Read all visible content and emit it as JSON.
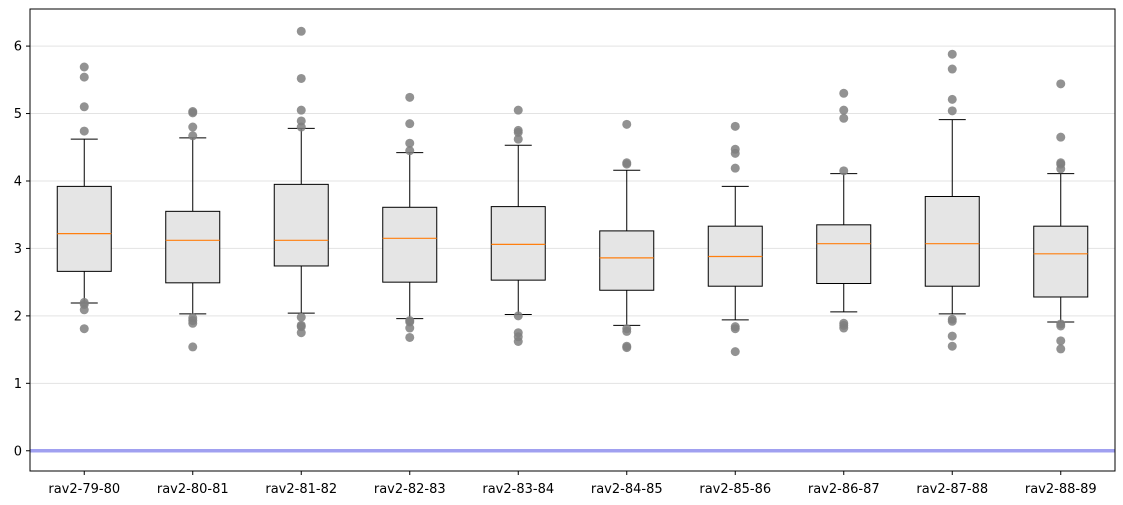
{
  "chart_data": {
    "type": "box",
    "title": "",
    "xlabel": "",
    "ylabel": "",
    "ylim": [
      -0.3,
      6.55
    ],
    "yticks": [
      0,
      1,
      2,
      3,
      4,
      5,
      6
    ],
    "grid": "horizontal",
    "reference_line": {
      "y": 0,
      "color": "#a0a0f0"
    },
    "colors": {
      "box_fill": "#e5e5e5",
      "box_edge": "#000000",
      "median": "#ff7f0e",
      "outlier": "#7f7f7f"
    },
    "categories": [
      "rav2-79-80",
      "rav2-80-81",
      "rav2-81-82",
      "rav2-82-83",
      "rav2-83-84",
      "rav2-84-85",
      "rav2-85-86",
      "rav2-86-87",
      "rav2-87-88",
      "rav2-88-89"
    ],
    "boxes": [
      {
        "whislo": 2.19,
        "q1": 2.66,
        "med": 3.22,
        "q3": 3.92,
        "whishi": 4.62,
        "fliers": [
          5.69,
          5.54,
          5.1,
          4.74,
          2.2,
          2.17,
          2.09,
          1.81
        ]
      },
      {
        "whislo": 2.03,
        "q1": 2.49,
        "med": 3.12,
        "q3": 3.55,
        "whishi": 4.64,
        "fliers": [
          5.03,
          5.01,
          4.8,
          4.67,
          1.97,
          1.93,
          1.89,
          1.54
        ]
      },
      {
        "whislo": 2.04,
        "q1": 2.74,
        "med": 3.12,
        "q3": 3.95,
        "whishi": 4.78,
        "fliers": [
          6.22,
          5.52,
          5.05,
          4.89,
          4.8,
          1.98,
          1.86,
          1.84,
          1.75
        ]
      },
      {
        "whislo": 1.96,
        "q1": 2.5,
        "med": 3.15,
        "q3": 3.61,
        "whishi": 4.42,
        "fliers": [
          5.24,
          4.85,
          4.56,
          4.45,
          1.93,
          1.91,
          1.82,
          1.68
        ]
      },
      {
        "whislo": 2.02,
        "q1": 2.53,
        "med": 3.06,
        "q3": 3.62,
        "whishi": 4.53,
        "fliers": [
          5.05,
          4.75,
          4.72,
          4.62,
          2.0,
          1.75,
          1.69,
          1.62
        ]
      },
      {
        "whislo": 1.86,
        "q1": 2.38,
        "med": 2.86,
        "q3": 3.26,
        "whishi": 4.16,
        "fliers": [
          4.84,
          4.27,
          4.25,
          1.81,
          1.77,
          1.55,
          1.53
        ]
      },
      {
        "whislo": 1.94,
        "q1": 2.44,
        "med": 2.88,
        "q3": 3.33,
        "whishi": 3.92,
        "fliers": [
          4.81,
          4.47,
          4.41,
          4.19,
          1.84,
          1.81,
          1.47
        ]
      },
      {
        "whislo": 2.06,
        "q1": 2.48,
        "med": 3.07,
        "q3": 3.35,
        "whishi": 4.11,
        "fliers": [
          5.3,
          5.05,
          4.93,
          4.15,
          1.89,
          1.86,
          1.82
        ]
      },
      {
        "whislo": 2.03,
        "q1": 2.44,
        "med": 3.07,
        "q3": 3.77,
        "whishi": 4.91,
        "fliers": [
          5.88,
          5.66,
          5.21,
          5.04,
          1.95,
          1.92,
          1.7,
          1.55
        ]
      },
      {
        "whislo": 1.91,
        "q1": 2.28,
        "med": 2.92,
        "q3": 3.33,
        "whishi": 4.11,
        "fliers": [
          5.44,
          4.65,
          4.27,
          4.25,
          4.18,
          1.88,
          1.85,
          1.63,
          1.51
        ]
      }
    ]
  }
}
